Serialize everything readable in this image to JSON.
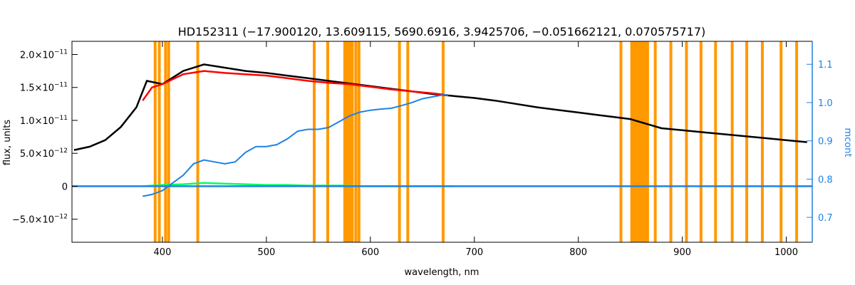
{
  "chart_data": {
    "type": "line",
    "title": "HD152311    (−17.900120, 13.609115, 5690.6916, 3.9425706, −0.051662121, 0.070575717)",
    "xlabel": "wavelength, nm",
    "ylabel_left": "flux, units",
    "ylabel_right": "mcont",
    "xlim": [
      313,
      1025
    ],
    "ylim_left": [
      -8.5e-12,
      2.2e-11
    ],
    "ylim_right": [
      0.635,
      1.16
    ],
    "x_ticks": [
      400,
      500,
      600,
      700,
      800,
      900,
      1000
    ],
    "y_ticks_left": [
      {
        "value": 2e-11,
        "mantissa": "2.0",
        "exponent": "−11"
      },
      {
        "value": 1.5e-11,
        "mantissa": "1.5",
        "exponent": "−11"
      },
      {
        "value": 1e-11,
        "mantissa": "1.0",
        "exponent": "−11"
      },
      {
        "value": 5e-12,
        "mantissa": "5.0",
        "exponent": "−12"
      },
      {
        "value": 0,
        "mantissa": "0",
        "exponent": ""
      },
      {
        "value": -5e-12,
        "mantissa": "−5.0",
        "exponent": "−12"
      }
    ],
    "y_ticks_right": [
      0.7,
      0.8,
      0.9,
      1.0,
      1.1
    ],
    "series": [
      {
        "color": "#000000",
        "x": [
          315,
          330,
          345,
          360,
          375,
          385,
          400,
          420,
          440,
          460,
          480,
          500,
          520,
          540,
          560,
          580,
          600,
          620,
          640,
          660,
          680,
          700,
          720,
          740,
          760,
          780,
          800,
          820,
          840,
          850,
          880,
          900,
          920,
          940,
          960,
          980,
          1000,
          1020
        ],
        "y": [
          5.5e-12,
          6e-12,
          7e-12,
          9e-12,
          1.2e-11,
          1.6e-11,
          1.55e-11,
          1.75e-11,
          1.85e-11,
          1.8e-11,
          1.75e-11,
          1.72e-11,
          1.68e-11,
          1.64e-11,
          1.6e-11,
          1.56e-11,
          1.52e-11,
          1.48e-11,
          1.44e-11,
          1.4e-11,
          1.37e-11,
          1.34e-11,
          1.3e-11,
          1.25e-11,
          1.2e-11,
          1.16e-11,
          1.12e-11,
          1.08e-11,
          1.04e-11,
          1.02e-11,
          8.8e-12,
          8.5e-12,
          8.2e-12,
          7.9e-12,
          7.6e-12,
          7.3e-12,
          7e-12,
          6.7e-12
        ]
      },
      {
        "color": "#ff0000",
        "x": [
          381,
          390,
          400,
          420,
          440,
          460,
          480,
          500,
          520,
          540,
          560,
          580,
          600,
          620,
          640,
          660,
          675
        ],
        "y": [
          1.3e-11,
          1.5e-11,
          1.55e-11,
          1.7e-11,
          1.75e-11,
          1.72e-11,
          1.7e-11,
          1.68e-11,
          1.64e-11,
          1.6e-11,
          1.57e-11,
          1.55e-11,
          1.51e-11,
          1.47e-11,
          1.44e-11,
          1.41e-11,
          1.38e-11
        ]
      },
      {
        "color": "#00ff66",
        "x": [
          381,
          400,
          420,
          440,
          460,
          480,
          500,
          520,
          540,
          560,
          575,
          590,
          610,
          630,
          650,
          670,
          680
        ],
        "y": [
          0,
          2e-13,
          3e-13,
          5e-13,
          4e-13,
          3e-13,
          2e-13,
          2e-13,
          1e-13,
          1e-13,
          1e-13,
          0,
          0,
          0,
          0,
          0,
          0
        ]
      },
      {
        "color": "#1e82e6",
        "axis": "right",
        "x": [
          381,
          390,
          400,
          410,
          420,
          430,
          440,
          450,
          460,
          470,
          480,
          490,
          500,
          510,
          520,
          530,
          540,
          550,
          560,
          570,
          580,
          590,
          600,
          610,
          620,
          630,
          640,
          650,
          660,
          670,
          675
        ],
        "y": [
          0.755,
          0.76,
          0.77,
          0.79,
          0.81,
          0.84,
          0.85,
          0.845,
          0.84,
          0.845,
          0.87,
          0.885,
          0.885,
          0.89,
          0.905,
          0.925,
          0.93,
          0.93,
          0.935,
          0.95,
          0.965,
          0.975,
          0.98,
          0.983,
          0.985,
          0.992,
          1.0,
          1.01,
          1.015,
          1.02,
          1.02
        ]
      },
      {
        "color": "#1e82e6",
        "axis": "left",
        "x": [
          313,
          1025
        ],
        "y": [
          0,
          0
        ]
      }
    ],
    "vertical_lines": [
      393,
      397,
      403,
      406,
      434,
      546,
      559,
      628,
      636,
      670,
      586,
      589,
      841,
      874,
      889,
      904,
      918,
      932,
      948,
      962,
      977,
      995,
      1010
    ],
    "shaded_bands": [
      [
        574,
        584
      ],
      [
        850,
        868
      ]
    ],
    "band_color": "#ff9900",
    "frame_color": "#ff9900",
    "right_axis_color": "#1e82e6"
  }
}
